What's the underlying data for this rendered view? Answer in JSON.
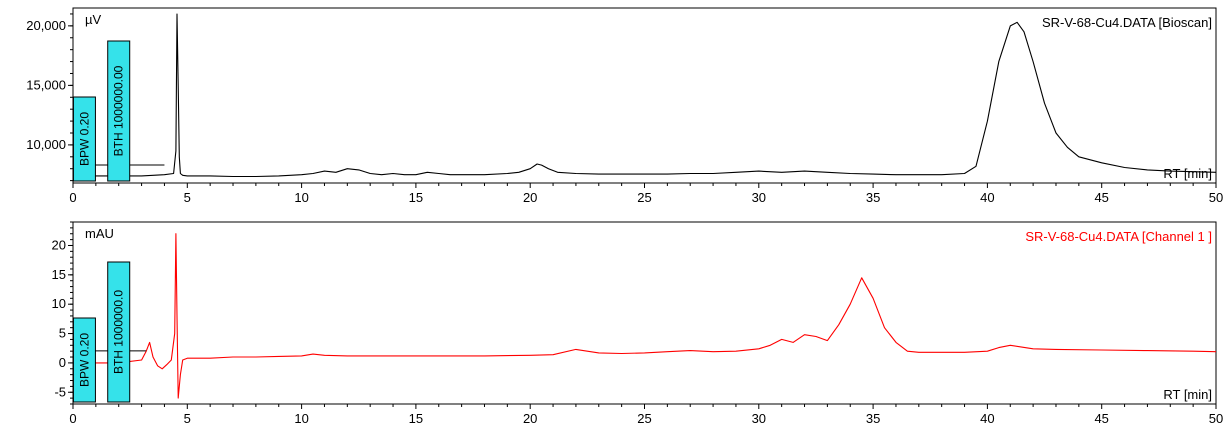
{
  "chart_data": [
    {
      "type": "line",
      "title": "SR-V-68-Cu4.DATA [Bioscan]",
      "ylabel": "µV",
      "xlabel": "RT [min]",
      "xlim": [
        0,
        50
      ],
      "ylim": [
        6800,
        21500
      ],
      "xticks": [
        0,
        5,
        10,
        15,
        20,
        25,
        30,
        35,
        40,
        45,
        50
      ],
      "yticks": [
        10000,
        15000,
        20000
      ],
      "ytick_labels": [
        "10,000",
        "15,000",
        "20,000"
      ],
      "color": "#000000",
      "annotations": [
        {
          "text": "BPW 0.20",
          "x": 0.5
        },
        {
          "text": "BTH 1000000.00",
          "x": 2.0
        }
      ],
      "series": [
        {
          "x": [
            0,
            1,
            2,
            3,
            4,
            4.4,
            4.5,
            4.55,
            4.6,
            4.65,
            4.7,
            4.8,
            5.0,
            6,
            7,
            8,
            9,
            10,
            10.5,
            11,
            11.5,
            12,
            12.5,
            13,
            13.5,
            14,
            14.5,
            15,
            15.5,
            16,
            16.5,
            17,
            18,
            19,
            19.5,
            20,
            20.3,
            20.5,
            20.8,
            21.2,
            22,
            23,
            24,
            25,
            26,
            27,
            28,
            29,
            29.5,
            30,
            31,
            31.5,
            32,
            33,
            34,
            35,
            36,
            37,
            38,
            39,
            39.5,
            40,
            40.5,
            41,
            41.3,
            41.6,
            42,
            42.5,
            43,
            43.5,
            44,
            45,
            46,
            47,
            48,
            49,
            50
          ],
          "y": [
            7300,
            7400,
            7400,
            7400,
            7500,
            7600,
            9500,
            21000,
            15000,
            9000,
            7600,
            7450,
            7400,
            7400,
            7350,
            7350,
            7400,
            7500,
            7600,
            7800,
            7700,
            8000,
            7900,
            7600,
            7500,
            7600,
            7500,
            7500,
            7700,
            7600,
            7500,
            7500,
            7500,
            7600,
            7700,
            8000,
            8400,
            8300,
            8000,
            7700,
            7600,
            7550,
            7550,
            7550,
            7550,
            7600,
            7600,
            7700,
            7750,
            7800,
            7700,
            7750,
            7800,
            7700,
            7600,
            7550,
            7500,
            7500,
            7500,
            7600,
            8200,
            12000,
            17000,
            20000,
            20300,
            19500,
            17000,
            13500,
            11000,
            9800,
            9000,
            8500,
            8100,
            7900,
            7800,
            7750,
            7700
          ]
        }
      ]
    },
    {
      "type": "line",
      "title": "SR-V-68-Cu4.DATA [Channel 1    ]",
      "ylabel": "mAU",
      "xlabel": "RT [min]",
      "xlim": [
        0,
        50
      ],
      "ylim": [
        -7,
        24
      ],
      "xticks": [
        0,
        5,
        10,
        15,
        20,
        25,
        30,
        35,
        40,
        45,
        50
      ],
      "yticks": [
        -5,
        0,
        5,
        10,
        15,
        20
      ],
      "ytick_labels": [
        "-5",
        "0",
        "5",
        "10",
        "15",
        "20"
      ],
      "color": "#ff0000",
      "annotations": [
        {
          "text": "BPW 0.20",
          "x": 0.5
        },
        {
          "text": "BTH 1000000.0",
          "x": 2.0
        }
      ],
      "series": [
        {
          "x": [
            0,
            1,
            2,
            3,
            3.2,
            3.35,
            3.5,
            3.7,
            3.9,
            4.1,
            4.3,
            4.45,
            4.5,
            4.55,
            4.6,
            4.7,
            4.8,
            5.0,
            6,
            7,
            8,
            9,
            10,
            10.5,
            11,
            12,
            14,
            16,
            18,
            20,
            21,
            22,
            23,
            24,
            25,
            26,
            27,
            28,
            29,
            30,
            30.5,
            31,
            31.5,
            32,
            32.5,
            33,
            33.5,
            34,
            34.5,
            35,
            35.5,
            36,
            36.5,
            37,
            38,
            39,
            40,
            40.5,
            41,
            41.5,
            42,
            43,
            45,
            47,
            49,
            50
          ],
          "y": [
            0,
            0,
            0,
            0.5,
            2,
            3.5,
            1,
            -0.5,
            -1,
            -0.3,
            0.5,
            5,
            22,
            8,
            -6,
            -2,
            0.5,
            0.8,
            0.8,
            1.0,
            1.0,
            1.1,
            1.2,
            1.5,
            1.3,
            1.2,
            1.2,
            1.2,
            1.2,
            1.3,
            1.4,
            2.3,
            1.7,
            1.6,
            1.7,
            1.9,
            2.1,
            1.9,
            2.0,
            2.4,
            3.0,
            4.0,
            3.5,
            4.8,
            4.5,
            3.8,
            6.5,
            10,
            14.5,
            11,
            6,
            3.5,
            2.0,
            1.8,
            1.8,
            1.8,
            2.0,
            2.6,
            3.0,
            2.7,
            2.4,
            2.3,
            2.2,
            2.1,
            2.0,
            1.9
          ]
        }
      ]
    }
  ]
}
